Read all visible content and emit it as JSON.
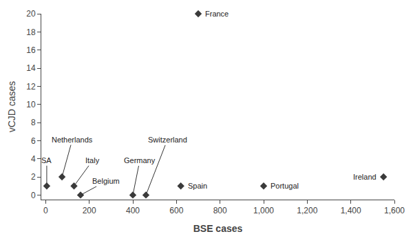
{
  "chart_data": {
    "type": "scatter",
    "x": [
      5,
      75,
      130,
      160,
      400,
      460,
      620,
      700,
      1000,
      1550
    ],
    "values": [
      1,
      2,
      1,
      0,
      0,
      0,
      1,
      20,
      1,
      2
    ],
    "annotations": [
      "SA",
      "Netherlands",
      "Italy",
      "Belgium",
      "Germany",
      "Switzerland",
      "Spain",
      "France",
      "Portugal",
      "Ireland"
    ],
    "xlabel": "BSE cases",
    "ylabel": "vCJD cases",
    "xlim": [
      -20,
      1600
    ],
    "ylim": [
      -0.5,
      20
    ],
    "xticks": [
      0,
      200,
      400,
      600,
      800,
      {
        "value": 1000,
        "label": "1,000"
      },
      {
        "value": 1200,
        "label": "1,200"
      },
      {
        "value": 1400,
        "label": "1,400"
      },
      {
        "value": 1600,
        "label": "1,600"
      }
    ],
    "yticks": [
      0,
      2,
      4,
      6,
      8,
      10,
      12,
      14,
      16,
      18,
      20
    ],
    "color": "#3a3a3a",
    "marker": "diamond",
    "grid": false
  }
}
